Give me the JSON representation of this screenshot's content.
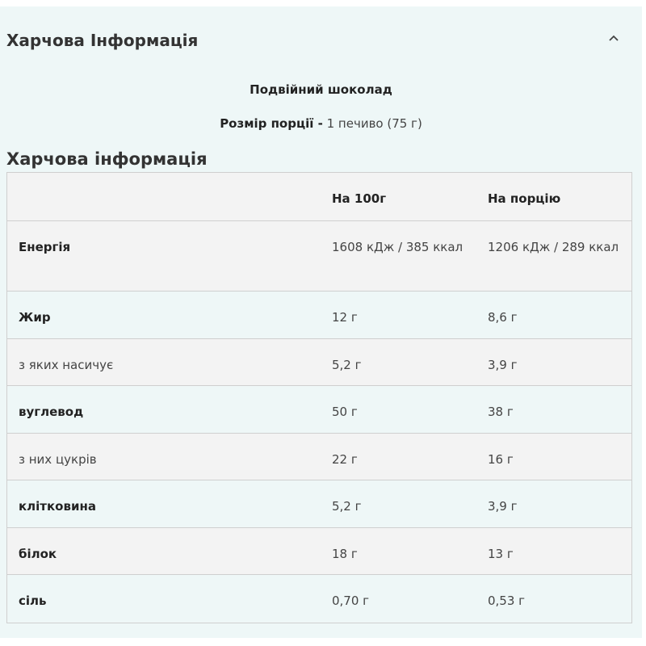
{
  "header": {
    "title": "Харчова Інформація"
  },
  "subtitle": "Подвійний шоколад",
  "serving": {
    "label": "Розмір порції -",
    "value": "1 печиво (75 г)"
  },
  "table": {
    "title": "Харчова інформація",
    "columns": [
      "На 100г",
      "На порцію"
    ],
    "rows": [
      {
        "label": "Енергія",
        "per_100g": "1608 кДж / 385 ккал",
        "per_serving": "1206 кДж / 289 ккал",
        "bold": true
      },
      {
        "label": "Жир",
        "per_100g": "12 г",
        "per_serving": "8,6 г",
        "bold": true
      },
      {
        "label": "з яких насичує",
        "per_100g": "5,2 г",
        "per_serving": "3,9 г",
        "bold": false
      },
      {
        "label": "вуглевод",
        "per_100g": "50 г",
        "per_serving": "38 г",
        "bold": true
      },
      {
        "label": "з них цукрів",
        "per_100g": "22 г",
        "per_serving": "16 г",
        "bold": false
      },
      {
        "label": "клітковина",
        "per_100g": "5,2 г",
        "per_serving": "3,9 г",
        "bold": true
      },
      {
        "label": "білок",
        "per_100g": "18 г",
        "per_serving": "13 г",
        "bold": true
      },
      {
        "label": "сіль",
        "per_100g": "0,70 г",
        "per_serving": "0,53 г",
        "bold": true
      }
    ]
  }
}
